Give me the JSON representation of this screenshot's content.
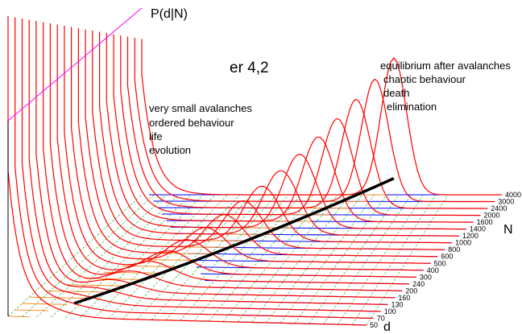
{
  "chart_data": {
    "type": "line",
    "title": "er 4,2",
    "zlabel": "P(d|N)",
    "xlabel": "d",
    "ylabel": "N",
    "d_ticks": [
      "50",
      "70",
      "100",
      "130",
      "160",
      "200",
      "240",
      "300",
      "400",
      "500",
      "600",
      "800",
      "1000",
      "1200",
      "1400",
      "1600",
      "2000",
      "2400",
      "3000",
      "4000"
    ],
    "N_values": [
      50,
      70,
      100,
      130,
      160,
      200,
      240,
      300,
      400,
      500,
      600,
      800,
      1000,
      1200,
      1400,
      1600,
      2000,
      2400,
      3000,
      4000
    ],
    "annotations_left": [
      "very small avalanches",
      "ordered behaviour",
      "life",
      "evolution"
    ],
    "annotations_right": [
      "equilibrium after avalanches",
      "chaotic behaviour",
      "death",
      "elimination"
    ],
    "colors": {
      "curves": "#ff0000",
      "grid_lines": "#00aa00",
      "back_floor": "#0000ff",
      "ridge": "#000000",
      "wall_edge": "#ff00ff"
    }
  }
}
